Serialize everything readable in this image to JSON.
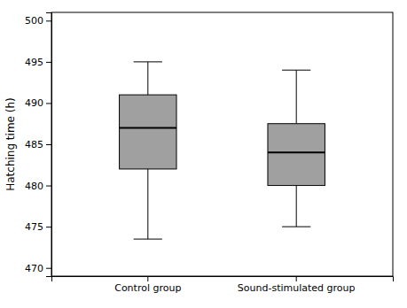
{
  "chart_data": {
    "type": "box",
    "categories": [
      "Control group",
      "Sound-stimulated group"
    ],
    "whisker_low": [
      473.5,
      475.0
    ],
    "q1": [
      482.0,
      480.0
    ],
    "median": [
      487.0,
      484.0
    ],
    "q3": [
      491.0,
      487.5
    ],
    "whisker_high": [
      495.0,
      494.0
    ],
    "ylabel": "Hatching time (h)",
    "ylim": [
      469,
      501
    ],
    "yticks": [
      470,
      475,
      480,
      485,
      490,
      495,
      500
    ],
    "color": "#a0a0a0",
    "grid": false
  }
}
